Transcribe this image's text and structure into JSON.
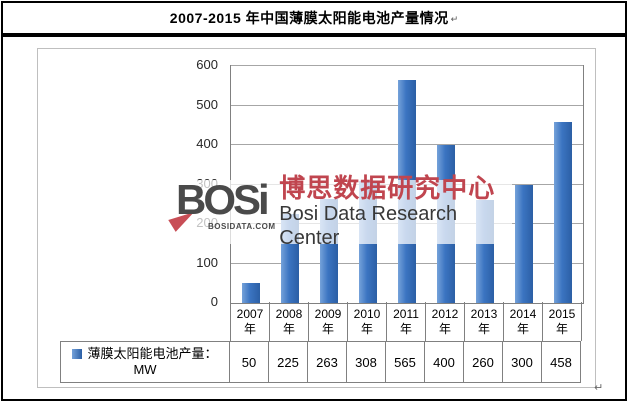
{
  "title": {
    "text": "2007-2015 年中国薄膜太阳能电池产量情况",
    "paragraph_mark": "↵"
  },
  "watermark": {
    "logo_text": "BOSi",
    "logo_sub": "BOSIDATA.COM",
    "cn_text": "博思数据研究中心",
    "en_text": "Bosi Data Research Center",
    "red_color": "#c0454f",
    "gray_color": "#4a4a4a"
  },
  "marks": {
    "end_paragraph_mark": "↵"
  },
  "chart_data": {
    "type": "bar",
    "title": "2007-2015 年中国薄膜太阳能电池产量情况",
    "categories": [
      "2007",
      "2008",
      "2009",
      "2010",
      "2011",
      "2012",
      "2013",
      "2014",
      "2015"
    ],
    "category_suffix": "年",
    "series": [
      {
        "name": "薄膜太阳能电池产量：MW",
        "values": [
          50,
          225,
          263,
          308,
          565,
          400,
          260,
          300,
          458
        ]
      }
    ],
    "legend_line1": "薄膜太阳能电池产量：",
    "legend_line2": "MW",
    "xlabel": "",
    "ylabel": "",
    "ylim": [
      0,
      600
    ],
    "ystep": 100,
    "grid": true,
    "legend_position": "data-table-left",
    "bar_color": "#3b74c1",
    "gridline_color": "#a6a6a6",
    "axis_color": "#808080"
  }
}
